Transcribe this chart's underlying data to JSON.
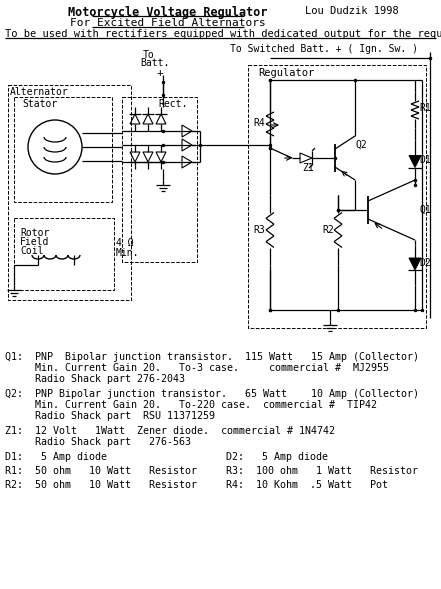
{
  "title1": "Motorcycle Voltage Regulator",
  "author": "Lou Dudzik 1998",
  "subtitle": "For Excited Field Alternators",
  "note": "To be used with rectifiers equipped with dedicated output for the regulator",
  "top_label": "To Switched Batt. + ( Ign. Sw. )",
  "Q1_line1": "Q1:  PNP  Bipolar junction transistor.  115 Watt   15 Amp (Collector)",
  "Q1_line2": "     Min. Current Gain 20.   To-3 case.     commercial #  MJ2955",
  "Q1_line3": "     Radio Shack part 276-2043",
  "Q2_line1": "Q2:  PNP Bipolar junction transistor.   65 Watt    10 Amp (Collector)",
  "Q2_line2": "     Min. Current Gain 20.   To-220 case.  commercial #  TIP42",
  "Q2_line3": "     Radio Shack part  RSU 11371259",
  "Z1_line1": "Z1:  12 Volt   1Watt  Zener diode.  commercial # 1N4742",
  "Z1_line2": "     Radio Shack part   276-563",
  "D1_line": "D1:   5 Amp diode",
  "D2_line": "D2:   5 Amp diode",
  "R1_line": "R1:  50 ohm   10 Watt   Resistor",
  "R2_line": "R2:  50 ohm   10 Watt   Resistor",
  "R3_line": "R3:  100 ohm   1 Watt   Resistor",
  "R4_line": "R4:  10 Kohm  .5 Watt   Pot",
  "bg": "#ffffff",
  "fg": "#000000"
}
